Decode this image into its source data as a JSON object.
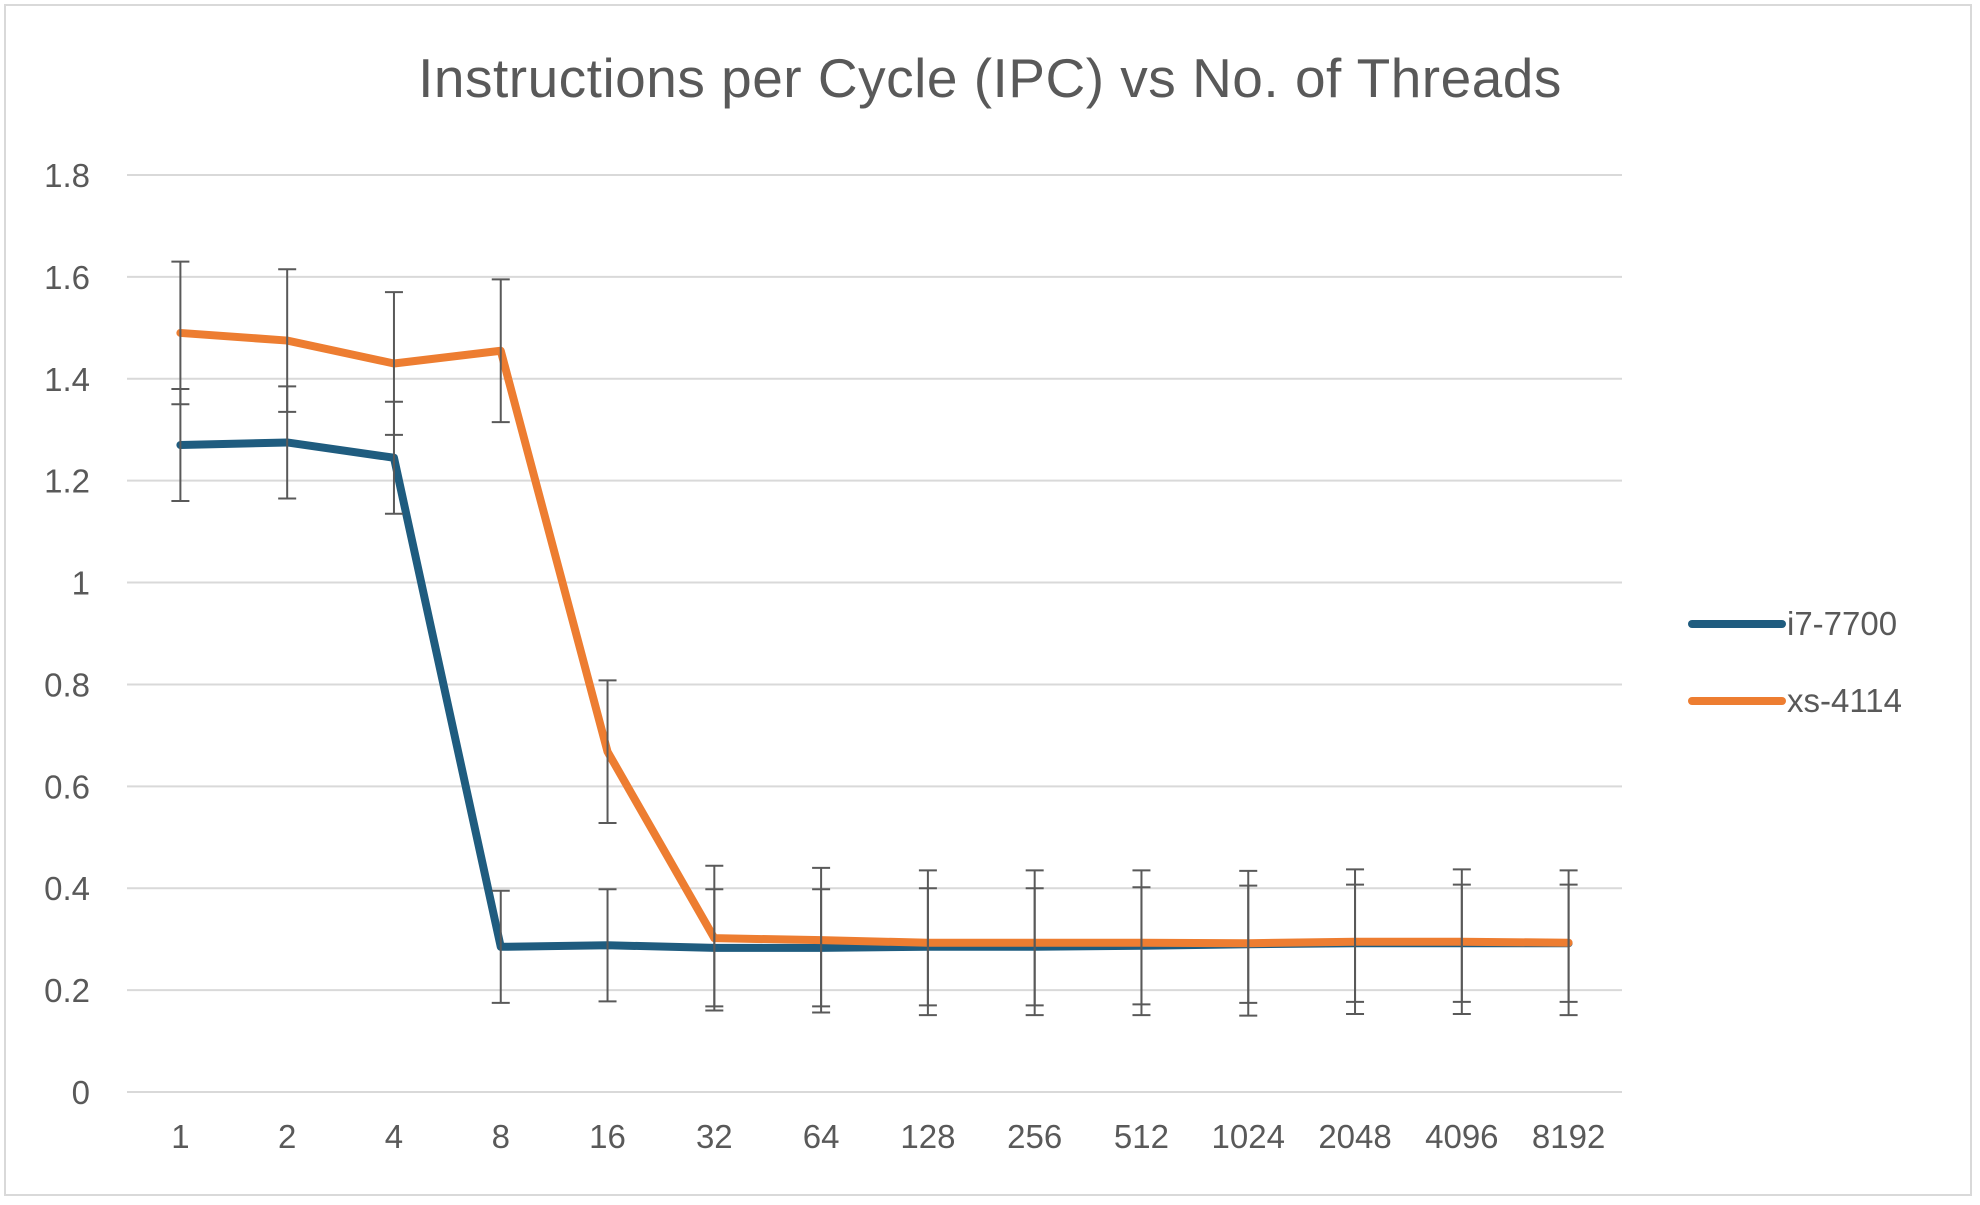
{
  "chart_data": {
    "type": "line",
    "title": "Instructions per Cycle (IPC) vs No. of Threads",
    "xlabel": "",
    "ylabel": "",
    "categories": [
      "1",
      "2",
      "4",
      "8",
      "16",
      "32",
      "64",
      "128",
      "256",
      "512",
      "1024",
      "2048",
      "4096",
      "8192"
    ],
    "ylim": [
      0,
      1.8
    ],
    "yticks": [
      "0",
      "0.2",
      "0.4",
      "0.6",
      "0.8",
      "1",
      "1.2",
      "1.4",
      "1.6",
      "1.8"
    ],
    "grid": true,
    "legend_position": "right",
    "error_bars": true,
    "series": [
      {
        "name": "i7-7700",
        "color": "#1f5c7f",
        "values": [
          1.27,
          1.275,
          1.245,
          0.285,
          0.288,
          0.283,
          0.283,
          0.285,
          0.285,
          0.287,
          0.29,
          0.292,
          0.292,
          0.292
        ],
        "errors": [
          0.11,
          0.11,
          0.11,
          0.11,
          0.11,
          0.115,
          0.115,
          0.115,
          0.115,
          0.115,
          0.115,
          0.115,
          0.115,
          0.115
        ]
      },
      {
        "name": "xs-4114",
        "color": "#ed7d31",
        "values": [
          1.49,
          1.475,
          1.43,
          1.455,
          0.668,
          0.302,
          0.298,
          0.293,
          0.293,
          0.293,
          0.292,
          0.295,
          0.295,
          0.293
        ],
        "errors": [
          0.14,
          0.14,
          0.14,
          0.14,
          0.14,
          0.142,
          0.142,
          0.142,
          0.142,
          0.142,
          0.142,
          0.142,
          0.142,
          0.142
        ]
      }
    ]
  }
}
